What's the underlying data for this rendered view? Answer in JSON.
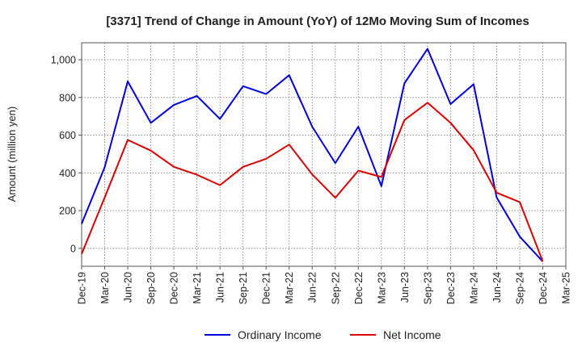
{
  "chart_data": {
    "type": "line",
    "title": "[3371]  Trend of Change in Amount (YoY) of 12Mo Moving Sum of Incomes",
    "xlabel": "",
    "ylabel": "Amount (million yen)",
    "categories": [
      "Dec-19",
      "Mar-20",
      "Jun-20",
      "Sep-20",
      "Dec-20",
      "Mar-21",
      "Jun-21",
      "Sep-21",
      "Dec-21",
      "Mar-22",
      "Jun-22",
      "Sep-22",
      "Dec-22",
      "Mar-23",
      "Jun-23",
      "Sep-23",
      "Dec-23",
      "Mar-24",
      "Jun-24",
      "Sep-24",
      "Dec-24",
      "Mar-25"
    ],
    "yticks": [
      0,
      200,
      400,
      600,
      800,
      1000
    ],
    "ytick_labels": [
      "0",
      "200",
      "400",
      "600",
      "800",
      "1,000"
    ],
    "ylim": [
      -95,
      1090
    ],
    "grid": true,
    "legend_position": "bottom-center",
    "series": [
      {
        "name": "Ordinary Income",
        "color": "#0000dd",
        "values": [
          130,
          430,
          885,
          665,
          760,
          808,
          686,
          860,
          818,
          918,
          645,
          452,
          645,
          330,
          875,
          1058,
          765,
          870,
          270,
          62,
          -70,
          null
        ]
      },
      {
        "name": "Net Income",
        "color": "#dd0000",
        "values": [
          -30,
          270,
          575,
          518,
          432,
          390,
          335,
          432,
          475,
          550,
          392,
          268,
          412,
          378,
          680,
          772,
          665,
          520,
          295,
          245,
          -70,
          null
        ]
      }
    ]
  }
}
